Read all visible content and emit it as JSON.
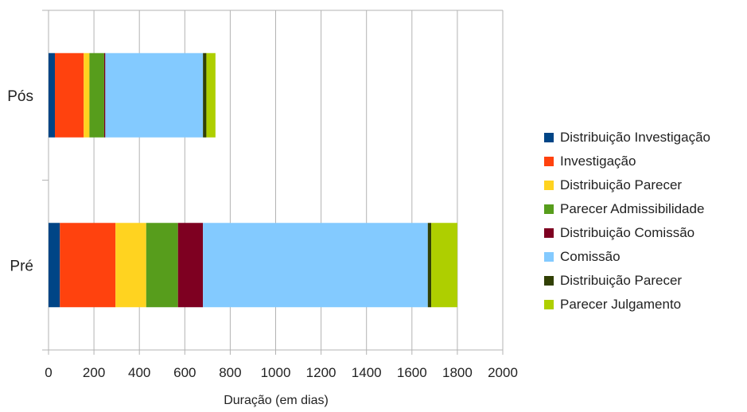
{
  "chart_data": {
    "type": "bar",
    "orientation": "horizontal",
    "stacked": true,
    "title": "",
    "xlabel": "Duração (em dias)",
    "ylabel": "",
    "xlim": [
      0,
      2000
    ],
    "xticks": [
      0,
      200,
      400,
      600,
      800,
      1000,
      1200,
      1400,
      1600,
      1800,
      2000
    ],
    "grid": true,
    "legend_position": "right",
    "categories": [
      "Pós",
      "Pré"
    ],
    "series": [
      {
        "name": "Distribuição Investigação",
        "color": "#004586",
        "values": [
          28,
          50
        ]
      },
      {
        "name": "Investigação",
        "color": "#ff420e",
        "values": [
          127,
          245
        ]
      },
      {
        "name": "Distribuição Parecer",
        "color": "#ffd320",
        "values": [
          25,
          135
        ]
      },
      {
        "name": "Parecer Admissibilidade",
        "color": "#579d1c",
        "values": [
          65,
          140
        ]
      },
      {
        "name": "Distribuição Comissão",
        "color": "#7e0021",
        "values": [
          5,
          110
        ]
      },
      {
        "name": "Comissão",
        "color": "#83caff",
        "values": [
          430,
          990
        ]
      },
      {
        "name": "Distribuição Parecer",
        "color": "#314004",
        "values": [
          15,
          15
        ]
      },
      {
        "name": "Parecer Julgamento",
        "color": "#aecf00",
        "values": [
          40,
          115
        ]
      }
    ]
  }
}
